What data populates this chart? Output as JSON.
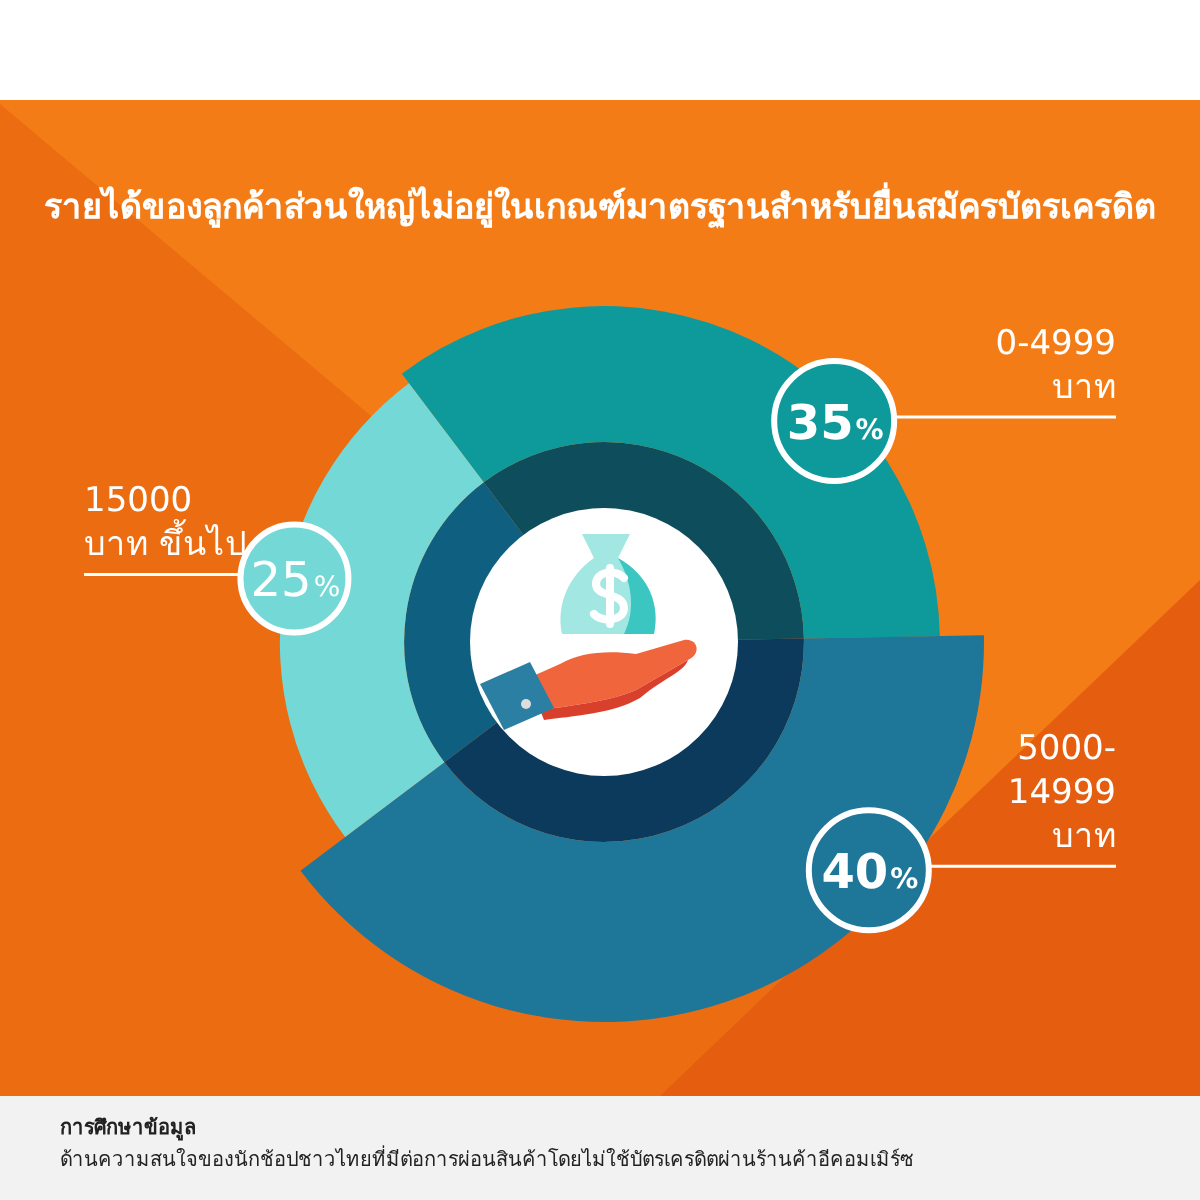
{
  "chart_data": {
    "type": "donut",
    "title": "รายได้ของลูกค้าส่วนใหญ่ไม่อยู่ในเกณฑ์มาตรฐานสำหรับยื่นสมัครบัตรเครดิต",
    "categories": [
      "0-4999 บาท",
      "5000-14999 บาท",
      "15000 บาท ขึ้นไป"
    ],
    "series": [
      {
        "values": [
          35,
          40,
          25
        ],
        "colors": [
          "#0e9a9b",
          "#1e7698",
          "#74d9d6"
        ],
        "value_labels": [
          "35%",
          "40%",
          "25%"
        ]
      },
      {
        "values": [
          35,
          40,
          25
        ],
        "colors": [
          "#0e4d5c",
          "#0c3a5c",
          "#0f6080"
        ]
      }
    ],
    "annotations": [
      "การศึกษาข้อมูล",
      "ด้านความสนใจของนักช้อปชาวไทยที่มีต่อการผ่อนสินค้าโดยไม่ใช้บัตรเครดิตผ่านร้านค้าอีคอมเมิร์ซ"
    ]
  }
}
